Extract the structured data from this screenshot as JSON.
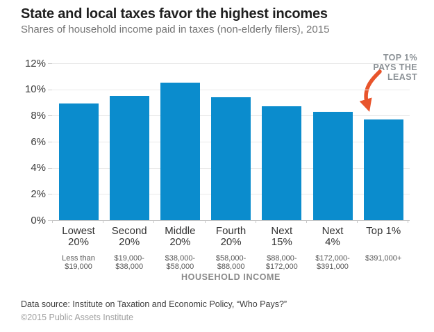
{
  "header": {
    "title": "State and local taxes favor the highest incomes",
    "subtitle": "Shares of household income paid in taxes (non-elderly filers), 2015"
  },
  "chart_data": {
    "type": "bar",
    "title": "State and local taxes favor the highest incomes",
    "subtitle": "Shares of household income paid in taxes (non-elderly filers), 2015",
    "categories": [
      "Lowest\n20%",
      "Second\n20%",
      "Middle\n20%",
      "Fourth\n20%",
      "Next\n15%",
      "Next\n4%",
      "Top 1%"
    ],
    "category_income_ranges": [
      "Less than\n$19,000",
      "$19,000-\n$38,000",
      "$38,000-\n$58,000",
      "$58,000-\n$88,000",
      "$88,000-\n$172,000",
      "$172,000-\n$391,000",
      "$391,000+"
    ],
    "values": [
      8.9,
      9.5,
      10.5,
      9.4,
      8.7,
      8.3,
      7.7
    ],
    "xlabel": "HOUSEHOLD INCOME",
    "ylabel": "",
    "ylim": [
      0,
      12
    ],
    "ytick_step": 2,
    "yticks": [
      "0%",
      "2%",
      "4%",
      "6%",
      "8%",
      "10%",
      "12%"
    ],
    "grid": true,
    "legend": "none",
    "bar_color": "#0b8ccd",
    "annotation": {
      "text": "TOP 1%\nPAYS THE\nLEAST",
      "color": "#8b9196",
      "arrow_color": "#e8542b",
      "points_to": "Top 1%"
    }
  },
  "footer": {
    "source": "Data source: Institute on Taxation and Economic Policy, “Who Pays?”",
    "copyright": "©2015 Public Assets Institute"
  }
}
